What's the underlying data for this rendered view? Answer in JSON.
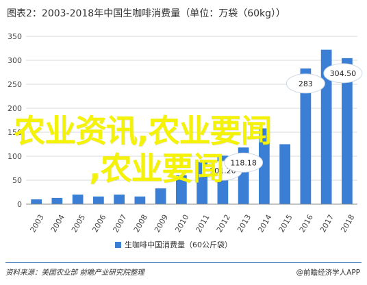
{
  "header": {
    "title": "图表2：2003-2018年中国生咖啡消费量（单位：万袋（60kg））"
  },
  "chart_data": {
    "type": "bar",
    "categories": [
      "2003",
      "2004",
      "2005",
      "2006",
      "2007",
      "2008",
      "2009",
      "2010",
      "2011",
      "2012",
      "2013",
      "2014",
      "2015",
      "2016",
      "2017",
      "2018"
    ],
    "series": [
      {
        "name": "生咖啡中国消费量（60公斤袋）",
        "values": [
          10,
          13,
          20,
          16,
          20,
          16,
          33,
          60,
          88,
          101.2,
          118.18,
          158,
          125,
          283,
          322,
          304.5
        ]
      }
    ],
    "data_labels": [
      {
        "category": "2012",
        "text": "101.20"
      },
      {
        "category": "2013",
        "text": "118.18"
      },
      {
        "category": "2016",
        "text": "283"
      },
      {
        "category": "2018",
        "text": "304.50"
      }
    ],
    "yticks": [
      "0",
      "50",
      "100",
      "150",
      "200",
      "250",
      "300",
      "350"
    ],
    "ylim": [
      0,
      350
    ],
    "grid": true,
    "legend_position": "bottom",
    "bar_color": "#3a7fd5"
  },
  "footer": {
    "source": "资料来源：美国农业部 前瞻产业研究院整理",
    "brand": "@前瞻经济学人APP"
  },
  "overlay": {
    "line1": "农业资讯,农业要闻",
    "line2": ",农业要闻"
  }
}
